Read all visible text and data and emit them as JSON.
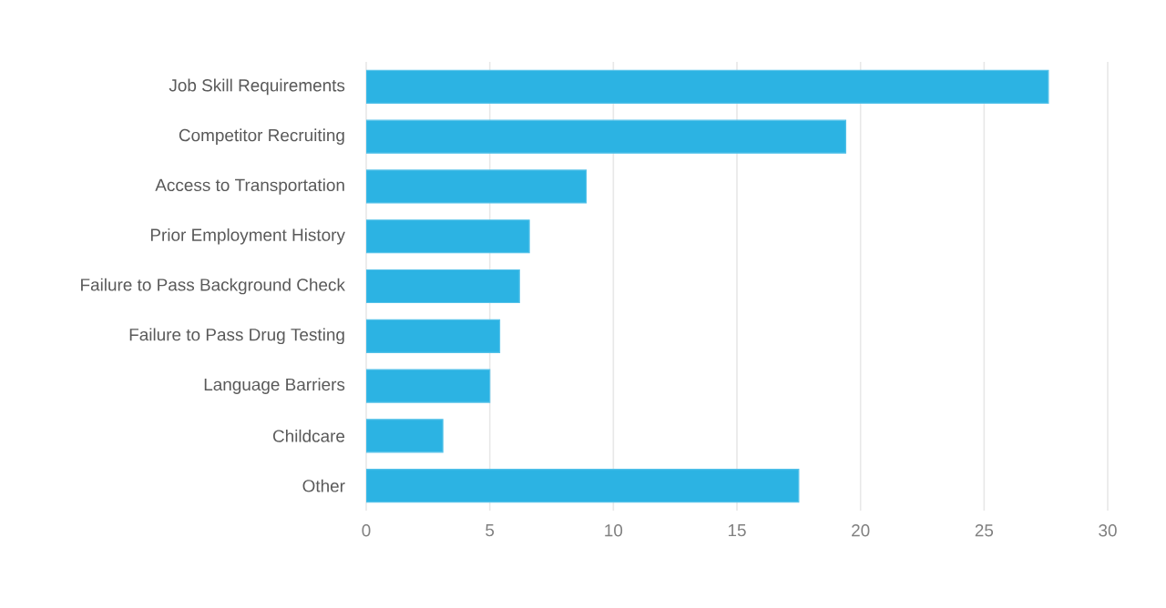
{
  "chart_data": {
    "type": "bar",
    "orientation": "horizontal",
    "categories": [
      "Job Skill Requirements",
      "Competitor Recruiting",
      "Access to Transportation",
      "Prior Employment History",
      "Failure to Pass Background Check",
      "Failure to Pass Drug Testing",
      "Language Barriers",
      "Childcare",
      "Other"
    ],
    "values": [
      27.6,
      19.4,
      8.9,
      6.6,
      6.2,
      5.4,
      5.0,
      3.1,
      17.5
    ],
    "color": "#2cb3e3",
    "xlim": [
      0,
      30
    ],
    "xticks": [
      0,
      5,
      10,
      15,
      20,
      25,
      30
    ],
    "grid": "x"
  }
}
